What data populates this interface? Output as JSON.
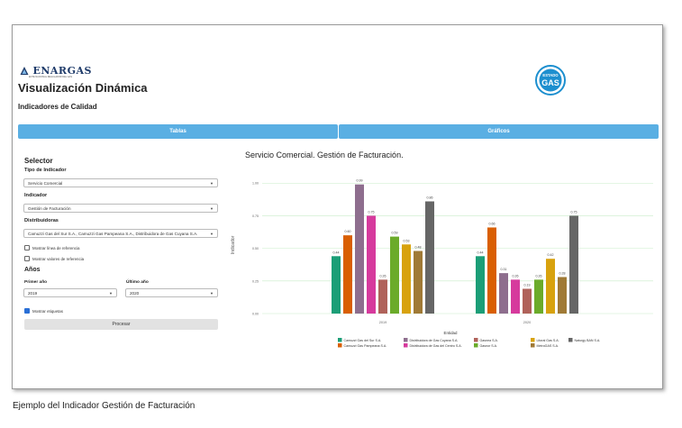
{
  "header": {
    "logo_left_text": "ENARGAS",
    "logo_left_sub": "ENTE NACIONAL REGULADOR DEL GAS",
    "logo_right_text_top": "ESTADO",
    "logo_right_text_bottom": "GAS",
    "title": "Visualización Dinámica",
    "subtitle": "Indicadores de Calidad"
  },
  "tabs": [
    {
      "label": "Tablas"
    },
    {
      "label": "Gráficos"
    }
  ],
  "sidebar": {
    "title": "Selector",
    "tipo_label": "Tipo de Indicador",
    "tipo_value": "Servicio Comercial",
    "indicador_label": "Indicador",
    "indicador_value": "Gestión de Facturación",
    "distribuidoras_label": "Distribuidoras",
    "distribuidoras_value": "Camuzzi Gas del Sur S.A., Camuzzi Gas Pampeana S.A., Distribuidora de Gas Cuyana S.A.",
    "check_linea_label": "Mostrar línea de referencia",
    "check_valores_label": "Mostrar valores de referencia",
    "anios_label": "Años",
    "primer_anio_label": "Primer año",
    "primer_anio_value": "2019",
    "ultimo_anio_label": "Último año",
    "ultimo_anio_value": "2020",
    "check_etiquetas_label": "Mostrar etiquetas",
    "procesar_label": "Procesar"
  },
  "chart_title": "Servicio Comercial. Gestión de Facturación.",
  "caption": "Ejemplo del Indicador Gestión de Facturación",
  "chart_data": {
    "type": "bar",
    "title": "Servicio Comercial. Gestión de Facturación.",
    "xlabel": "Entidad",
    "ylabel": "Indicador",
    "categories": [
      "2019",
      "2020"
    ],
    "ylim": [
      0,
      1.05
    ],
    "yticks": [
      "0.00",
      "0.25",
      "0.50",
      "0.75",
      "1.00"
    ],
    "grid": true,
    "legend_title": "Entidad",
    "legend_position": "bottom",
    "series": [
      {
        "name": "Camuzzi Gas del Sur S.A.",
        "color": "#1b9e77",
        "values": [
          0.44,
          0.44
        ]
      },
      {
        "name": "Camuzzi Gas Pampeana S.A.",
        "color": "#d95f02",
        "values": [
          0.6,
          0.66
        ]
      },
      {
        "name": "Distribuidora de Gas Cuyana S.A.",
        "color": "#8e6e8e",
        "values": [
          0.99,
          0.31
        ]
      },
      {
        "name": "Distribuidora de Gas del Centro S.A.",
        "color": "#d63a9d",
        "values": [
          0.75,
          0.26
        ]
      },
      {
        "name": "Gasnea S.A.",
        "color": "#b0625a",
        "values": [
          0.26,
          0.19
        ]
      },
      {
        "name": "Gasnor S.A.",
        "color": "#6bab2a",
        "values": [
          0.59,
          0.26
        ]
      },
      {
        "name": "Litoral Gas S.A.",
        "color": "#d8a20e",
        "values": [
          0.53,
          0.42
        ]
      },
      {
        "name": "MetroGAS S.A.",
        "color": "#a07a36",
        "values": [
          0.48,
          0.28
        ]
      },
      {
        "name": "Naturgy BAN S.A.",
        "color": "#666666",
        "values": [
          0.86,
          0.75
        ]
      }
    ]
  }
}
